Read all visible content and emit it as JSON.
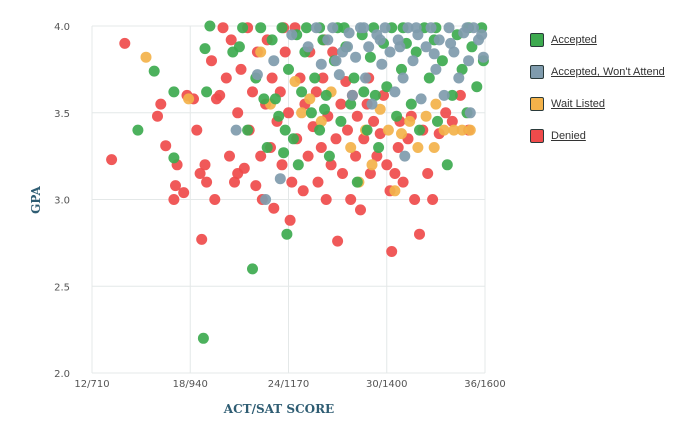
{
  "chart_data": {
    "type": "scatter",
    "xlabel": "ACT/SAT SCORE",
    "ylabel": "GPA",
    "xlim": [
      12,
      36
    ],
    "ylim": [
      2.0,
      4.0
    ],
    "x_ticks": [
      {
        "value": 12,
        "label": "12/710"
      },
      {
        "value": 18,
        "label": "18/940"
      },
      {
        "value": 24,
        "label": "24/1170"
      },
      {
        "value": 30,
        "label": "30/1400"
      },
      {
        "value": 36,
        "label": "36/1600"
      }
    ],
    "y_ticks": [
      {
        "value": 2.0,
        "label": "2.0"
      },
      {
        "value": 2.5,
        "label": "2.5"
      },
      {
        "value": 3.0,
        "label": "3.0"
      },
      {
        "value": 3.5,
        "label": "3.5"
      },
      {
        "value": 4.0,
        "label": "4.0"
      }
    ],
    "grid": true,
    "legend_position": "right",
    "series": [
      {
        "name": "Accepted",
        "color": "#3daa4f",
        "points": [
          [
            14.8,
            3.4
          ],
          [
            15.8,
            3.74
          ],
          [
            17.0,
            3.24
          ],
          [
            17.0,
            3.62
          ],
          [
            18.9,
            3.87
          ],
          [
            19.0,
            3.62
          ],
          [
            19.2,
            4.0
          ],
          [
            18.8,
            2.2
          ],
          [
            20.6,
            3.85
          ],
          [
            21.0,
            3.88
          ],
          [
            21.5,
            3.4
          ],
          [
            21.8,
            2.6
          ],
          [
            22.0,
            3.7
          ],
          [
            22.3,
            3.99
          ],
          [
            22.5,
            3.58
          ],
          [
            22.7,
            3.3
          ],
          [
            23.0,
            3.92
          ],
          [
            23.2,
            3.58
          ],
          [
            23.4,
            3.48
          ],
          [
            23.7,
            3.27
          ],
          [
            23.8,
            3.4
          ],
          [
            23.9,
            2.8
          ],
          [
            24.0,
            3.75
          ],
          [
            24.3,
            3.35
          ],
          [
            24.5,
            3.95
          ],
          [
            24.8,
            3.62
          ],
          [
            25.0,
            3.85
          ],
          [
            25.1,
            3.99
          ],
          [
            25.4,
            3.5
          ],
          [
            25.6,
            3.7
          ],
          [
            25.9,
            3.4
          ],
          [
            26.1,
            3.92
          ],
          [
            26.3,
            3.6
          ],
          [
            26.5,
            3.25
          ],
          [
            26.8,
            3.8
          ],
          [
            27.0,
            3.99
          ],
          [
            27.2,
            3.45
          ],
          [
            27.5,
            3.88
          ],
          [
            27.8,
            3.55
          ],
          [
            28.0,
            3.7
          ],
          [
            28.2,
            3.1
          ],
          [
            28.5,
            3.95
          ],
          [
            28.8,
            3.4
          ],
          [
            29.0,
            3.82
          ],
          [
            29.3,
            3.6
          ],
          [
            29.5,
            3.3
          ],
          [
            29.8,
            3.9
          ],
          [
            30.0,
            3.65
          ],
          [
            30.3,
            3.99
          ],
          [
            30.6,
            3.48
          ],
          [
            30.9,
            3.75
          ],
          [
            31.2,
            3.9
          ],
          [
            31.5,
            3.55
          ],
          [
            31.8,
            3.85
          ],
          [
            32.0,
            3.4
          ],
          [
            32.3,
            3.99
          ],
          [
            32.6,
            3.7
          ],
          [
            32.9,
            3.92
          ],
          [
            33.1,
            3.45
          ],
          [
            33.4,
            3.8
          ],
          [
            33.7,
            3.2
          ],
          [
            34.0,
            3.6
          ],
          [
            34.3,
            3.95
          ],
          [
            34.6,
            3.75
          ],
          [
            34.9,
            3.5
          ],
          [
            35.2,
            3.88
          ],
          [
            35.5,
            3.65
          ],
          [
            35.8,
            3.99
          ],
          [
            35.9,
            3.8
          ],
          [
            21.2,
            3.99
          ],
          [
            23.6,
            3.99
          ],
          [
            25.9,
            3.99
          ],
          [
            27.4,
            3.99
          ],
          [
            29.2,
            3.99
          ],
          [
            31.0,
            3.99
          ],
          [
            33.0,
            3.99
          ],
          [
            35.0,
            3.99
          ],
          [
            28.6,
            3.62
          ],
          [
            26.2,
            3.52
          ],
          [
            24.6,
            3.2
          ]
        ]
      },
      {
        "name": "Accepted, Won't Attend",
        "color": "#7f9bad",
        "points": [
          [
            20.8,
            3.4
          ],
          [
            22.1,
            3.72
          ],
          [
            22.6,
            3.0
          ],
          [
            23.1,
            3.8
          ],
          [
            23.5,
            3.12
          ],
          [
            24.2,
            3.95
          ],
          [
            25.2,
            3.88
          ],
          [
            25.7,
            3.99
          ],
          [
            26.0,
            3.78
          ],
          [
            26.4,
            3.92
          ],
          [
            26.7,
            3.99
          ],
          [
            27.1,
            3.72
          ],
          [
            27.3,
            3.85
          ],
          [
            27.7,
            3.96
          ],
          [
            27.9,
            3.6
          ],
          [
            28.1,
            3.82
          ],
          [
            28.4,
            3.99
          ],
          [
            28.7,
            3.7
          ],
          [
            28.9,
            3.88
          ],
          [
            29.1,
            3.55
          ],
          [
            29.4,
            3.95
          ],
          [
            29.7,
            3.78
          ],
          [
            29.9,
            3.99
          ],
          [
            30.2,
            3.85
          ],
          [
            30.5,
            3.62
          ],
          [
            30.7,
            3.92
          ],
          [
            31.0,
            3.7
          ],
          [
            31.1,
            3.25
          ],
          [
            31.3,
            3.99
          ],
          [
            31.6,
            3.8
          ],
          [
            31.9,
            3.95
          ],
          [
            32.1,
            3.58
          ],
          [
            32.4,
            3.88
          ],
          [
            32.7,
            3.99
          ],
          [
            33.0,
            3.75
          ],
          [
            33.2,
            3.92
          ],
          [
            33.5,
            3.6
          ],
          [
            33.8,
            3.99
          ],
          [
            34.1,
            3.85
          ],
          [
            34.4,
            3.7
          ],
          [
            34.7,
            3.96
          ],
          [
            35.0,
            3.8
          ],
          [
            35.3,
            3.99
          ],
          [
            35.6,
            3.92
          ],
          [
            35.9,
            3.82
          ],
          [
            35.8,
            3.95
          ],
          [
            34.9,
            3.99
          ],
          [
            33.9,
            3.9
          ],
          [
            32.9,
            3.84
          ],
          [
            31.8,
            3.99
          ],
          [
            30.8,
            3.88
          ],
          [
            29.6,
            3.92
          ],
          [
            28.6,
            3.99
          ],
          [
            27.6,
            3.88
          ],
          [
            26.9,
            3.8
          ],
          [
            35.1,
            3.5
          ]
        ]
      },
      {
        "name": "Wait Listed",
        "color": "#f3b24a",
        "points": [
          [
            15.3,
            3.82
          ],
          [
            17.9,
            3.58
          ],
          [
            22.3,
            3.85
          ],
          [
            22.9,
            3.55
          ],
          [
            24.4,
            3.68
          ],
          [
            25.3,
            3.58
          ],
          [
            26.6,
            3.62
          ],
          [
            27.8,
            3.3
          ],
          [
            28.3,
            3.1
          ],
          [
            28.7,
            3.4
          ],
          [
            29.1,
            3.2
          ],
          [
            29.6,
            3.52
          ],
          [
            30.1,
            3.4
          ],
          [
            30.5,
            3.05
          ],
          [
            30.9,
            3.38
          ],
          [
            31.4,
            3.45
          ],
          [
            31.9,
            3.3
          ],
          [
            32.4,
            3.48
          ],
          [
            32.9,
            3.3
          ],
          [
            33.5,
            3.4
          ],
          [
            34.1,
            3.4
          ],
          [
            34.6,
            3.4
          ],
          [
            35.1,
            3.4
          ],
          [
            33.0,
            3.55
          ],
          [
            26.0,
            3.45
          ],
          [
            24.8,
            3.5
          ]
        ]
      },
      {
        "name": "Denied",
        "color": "#ef4b4b",
        "points": [
          [
            13.2,
            3.23
          ],
          [
            14.0,
            3.9
          ],
          [
            16.0,
            3.48
          ],
          [
            16.2,
            3.55
          ],
          [
            16.5,
            3.31
          ],
          [
            17.0,
            3.0
          ],
          [
            17.1,
            3.08
          ],
          [
            17.2,
            3.2
          ],
          [
            17.6,
            3.04
          ],
          [
            17.8,
            3.6
          ],
          [
            18.2,
            3.58
          ],
          [
            18.4,
            3.4
          ],
          [
            18.6,
            3.15
          ],
          [
            18.7,
            2.77
          ],
          [
            18.9,
            3.2
          ],
          [
            19.0,
            3.1
          ],
          [
            19.3,
            3.8
          ],
          [
            19.5,
            3.0
          ],
          [
            19.8,
            3.6
          ],
          [
            20.0,
            3.99
          ],
          [
            20.2,
            3.7
          ],
          [
            20.4,
            3.25
          ],
          [
            20.5,
            3.92
          ],
          [
            20.7,
            3.1
          ],
          [
            20.9,
            3.5
          ],
          [
            21.1,
            3.75
          ],
          [
            21.3,
            3.18
          ],
          [
            21.5,
            3.99
          ],
          [
            21.6,
            3.4
          ],
          [
            21.8,
            3.62
          ],
          [
            22.0,
            3.08
          ],
          [
            22.1,
            3.85
          ],
          [
            22.3,
            3.25
          ],
          [
            22.4,
            3.0
          ],
          [
            22.6,
            3.55
          ],
          [
            22.7,
            3.92
          ],
          [
            22.9,
            3.3
          ],
          [
            23.0,
            3.7
          ],
          [
            23.1,
            2.95
          ],
          [
            23.3,
            3.45
          ],
          [
            23.5,
            3.62
          ],
          [
            23.6,
            3.2
          ],
          [
            23.8,
            3.85
          ],
          [
            24.0,
            3.5
          ],
          [
            24.1,
            2.88
          ],
          [
            24.2,
            3.1
          ],
          [
            24.4,
            3.99
          ],
          [
            24.5,
            3.35
          ],
          [
            24.7,
            3.7
          ],
          [
            24.9,
            3.05
          ],
          [
            25.0,
            3.55
          ],
          [
            25.2,
            3.25
          ],
          [
            25.3,
            3.85
          ],
          [
            25.5,
            3.42
          ],
          [
            25.7,
            3.62
          ],
          [
            25.8,
            3.1
          ],
          [
            26.0,
            3.3
          ],
          [
            26.1,
            3.7
          ],
          [
            26.3,
            3.0
          ],
          [
            26.4,
            3.48
          ],
          [
            26.6,
            3.2
          ],
          [
            26.7,
            3.85
          ],
          [
            26.9,
            3.35
          ],
          [
            27.0,
            2.76
          ],
          [
            27.2,
            3.55
          ],
          [
            27.3,
            3.15
          ],
          [
            27.5,
            3.68
          ],
          [
            27.6,
            3.4
          ],
          [
            27.8,
            3.0
          ],
          [
            27.9,
            3.6
          ],
          [
            28.1,
            3.25
          ],
          [
            28.2,
            3.48
          ],
          [
            28.4,
            2.94
          ],
          [
            28.6,
            3.35
          ],
          [
            28.8,
            3.55
          ],
          [
            29.0,
            3.15
          ],
          [
            29.2,
            3.45
          ],
          [
            29.4,
            3.25
          ],
          [
            29.6,
            3.38
          ],
          [
            29.8,
            3.6
          ],
          [
            30.0,
            3.2
          ],
          [
            30.2,
            3.05
          ],
          [
            30.3,
            2.7
          ],
          [
            30.5,
            3.15
          ],
          [
            30.7,
            3.3
          ],
          [
            30.8,
            3.45
          ],
          [
            31.0,
            3.1
          ],
          [
            31.3,
            3.35
          ],
          [
            31.5,
            3.48
          ],
          [
            31.7,
            3.0
          ],
          [
            32.0,
            2.8
          ],
          [
            32.2,
            3.4
          ],
          [
            32.5,
            3.15
          ],
          [
            32.8,
            3.0
          ],
          [
            33.2,
            3.38
          ],
          [
            33.6,
            3.5
          ],
          [
            34.0,
            3.45
          ],
          [
            34.5,
            3.6
          ],
          [
            35.0,
            3.4
          ],
          [
            23.7,
            3.99
          ],
          [
            20.9,
            3.15
          ],
          [
            19.6,
            3.58
          ],
          [
            26.2,
            3.92
          ],
          [
            28.9,
            3.7
          ]
        ]
      }
    ]
  }
}
